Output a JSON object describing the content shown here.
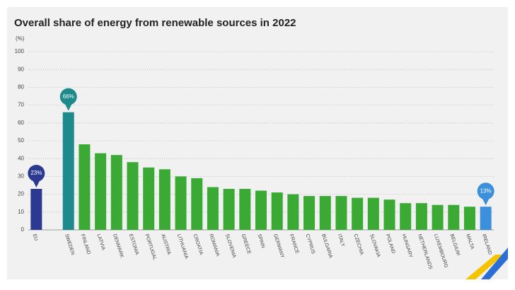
{
  "chart_data": {
    "type": "bar",
    "title": "Overall share of energy from renewable sources in 2022",
    "y_label": "(%)",
    "categories": [
      "EU",
      "SWEDEN",
      "FINLAND",
      "LATVIA",
      "DENMARK",
      "ESTONIA",
      "PORTUGAL",
      "AUSTRIA",
      "LITHUANIA",
      "CROATIA",
      "ROMANIA",
      "SLOVENIA",
      "GREECE",
      "SPAIN",
      "GERMANY",
      "FRANCE",
      "CYPRUS",
      "BULGARIA",
      "ITALY",
      "CZECHIA",
      "SLOVAKIA",
      "POLAND",
      "HUNGARY",
      "NETHERLANDS",
      "LUXEMBOURG",
      "BELGIUM",
      "MALTA",
      "IRELAND"
    ],
    "values": [
      23,
      66,
      48,
      43,
      42,
      38,
      35,
      34,
      30,
      29,
      24,
      23,
      23,
      22,
      21,
      20,
      19,
      19,
      19,
      18,
      18,
      17,
      15,
      15,
      14,
      14,
      13,
      13
    ],
    "value_labels": [
      "23%",
      "66%",
      null,
      null,
      null,
      null,
      null,
      null,
      null,
      null,
      null,
      null,
      null,
      null,
      null,
      null,
      null,
      null,
      null,
      null,
      null,
      null,
      null,
      null,
      null,
      null,
      null,
      "13%"
    ],
    "colors": [
      "#2b3990",
      "#1f8a8c",
      "#3aaa35",
      "#3aaa35",
      "#3aaa35",
      "#3aaa35",
      "#3aaa35",
      "#3aaa35",
      "#3aaa35",
      "#3aaa35",
      "#3aaa35",
      "#3aaa35",
      "#3aaa35",
      "#3aaa35",
      "#3aaa35",
      "#3aaa35",
      "#3aaa35",
      "#3aaa35",
      "#3aaa35",
      "#3aaa35",
      "#3aaa35",
      "#3aaa35",
      "#3aaa35",
      "#3aaa35",
      "#3aaa35",
      "#3aaa35",
      "#3aaa35",
      "#3b8fdb"
    ],
    "ylim": [
      0,
      100
    ],
    "yticks": [
      0,
      10,
      20,
      30,
      40,
      50,
      60,
      70,
      80,
      90,
      100
    ],
    "grid": true
  }
}
